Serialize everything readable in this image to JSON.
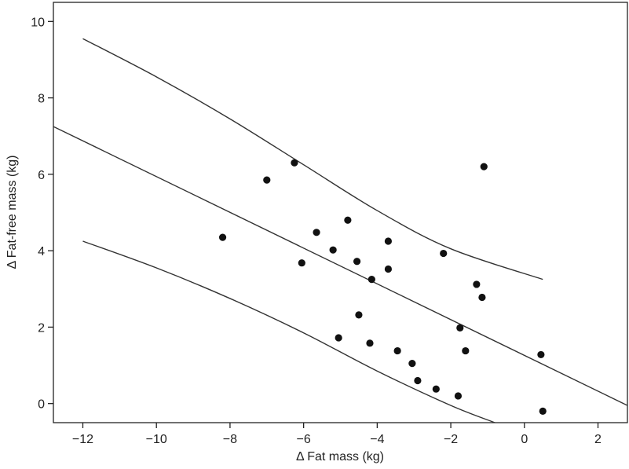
{
  "chart_data": {
    "type": "scatter",
    "xlabel": "Δ Fat mass (kg)",
    "ylabel": "Δ Fat-free mass (kg)",
    "xlim": [
      -12.8,
      2.8
    ],
    "ylim": [
      -0.5,
      10.5
    ],
    "xticks": [
      -12,
      -10,
      -8,
      -6,
      -4,
      -2,
      0,
      2
    ],
    "xtick_labels": [
      "−12",
      "−10",
      "−8",
      "−6",
      "−4",
      "−2",
      "0",
      "2"
    ],
    "yticks": [
      0,
      2,
      4,
      6,
      8,
      10
    ],
    "ytick_labels": [
      "0",
      "2",
      "4",
      "6",
      "8",
      "10"
    ],
    "grid": false,
    "colors": {
      "points": "#111111",
      "lines": "#333333",
      "axes": "#222222"
    },
    "points": [
      {
        "x": -8.2,
        "y": 4.35
      },
      {
        "x": -7.0,
        "y": 5.85
      },
      {
        "x": -6.25,
        "y": 6.3
      },
      {
        "x": -6.05,
        "y": 3.68
      },
      {
        "x": -5.65,
        "y": 4.48
      },
      {
        "x": -5.2,
        "y": 4.02
      },
      {
        "x": -5.05,
        "y": 1.72
      },
      {
        "x": -4.8,
        "y": 4.8
      },
      {
        "x": -4.55,
        "y": 3.72
      },
      {
        "x": -4.5,
        "y": 2.32
      },
      {
        "x": -4.2,
        "y": 1.58
      },
      {
        "x": -4.15,
        "y": 3.25
      },
      {
        "x": -3.7,
        "y": 4.25
      },
      {
        "x": -3.7,
        "y": 3.52
      },
      {
        "x": -3.45,
        "y": 1.38
      },
      {
        "x": -3.05,
        "y": 1.05
      },
      {
        "x": -2.9,
        "y": 0.6
      },
      {
        "x": -2.4,
        "y": 0.38
      },
      {
        "x": -2.2,
        "y": 3.93
      },
      {
        "x": -1.8,
        "y": 0.2
      },
      {
        "x": -1.75,
        "y": 1.98
      },
      {
        "x": -1.6,
        "y": 1.38
      },
      {
        "x": -1.3,
        "y": 3.12
      },
      {
        "x": -1.15,
        "y": 2.78
      },
      {
        "x": -1.1,
        "y": 6.2
      },
      {
        "x": 0.45,
        "y": 1.28
      },
      {
        "x": 0.5,
        "y": -0.2
      }
    ],
    "lines": [
      {
        "name": "upper",
        "points": [
          [
            -12.0,
            9.55
          ],
          [
            -10.0,
            8.55
          ],
          [
            -8.0,
            7.45
          ],
          [
            -6.0,
            6.25
          ],
          [
            -4.0,
            5.05
          ],
          [
            -2.0,
            4.05
          ],
          [
            0.5,
            3.25
          ]
        ]
      },
      {
        "name": "regression",
        "points": [
          [
            -12.8,
            7.25
          ],
          [
            2.8,
            -0.05
          ]
        ]
      },
      {
        "name": "lower",
        "points": [
          [
            -12.0,
            4.25
          ],
          [
            -10.0,
            3.55
          ],
          [
            -8.0,
            2.75
          ],
          [
            -6.0,
            1.85
          ],
          [
            -4.0,
            0.85
          ],
          [
            -2.0,
            -0.05
          ],
          [
            -0.8,
            -0.5
          ]
        ]
      }
    ]
  }
}
